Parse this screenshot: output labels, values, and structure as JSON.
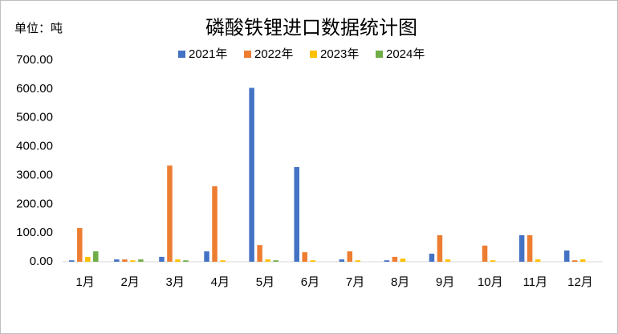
{
  "chart_data": {
    "type": "bar",
    "title": "磷酸铁锂进口数据统计图",
    "y_label": "单位：吨",
    "categories": [
      "1月",
      "2月",
      "3月",
      "4月",
      "5月",
      "6月",
      "7月",
      "8月",
      "9月",
      "10月",
      "11月",
      "12月"
    ],
    "series": [
      {
        "name": "2021年",
        "color": "#4472c4",
        "values": [
          5,
          8,
          17,
          36,
          604,
          329,
          8,
          5,
          28,
          0,
          92,
          39
        ]
      },
      {
        "name": "2022年",
        "color": "#ed7d31",
        "values": [
          117,
          8,
          334,
          262,
          58,
          33,
          36,
          17,
          92,
          56,
          92,
          5
        ]
      },
      {
        "name": "2023年",
        "color": "#ffc000",
        "values": [
          17,
          5,
          8,
          5,
          8,
          5,
          5,
          11,
          8,
          5,
          8,
          8
        ]
      },
      {
        "name": "2024年",
        "color": "#70ad47",
        "values": [
          36,
          8,
          5,
          null,
          5,
          null,
          null,
          null,
          null,
          null,
          null,
          null
        ]
      }
    ],
    "ylim": [
      0,
      700
    ],
    "yticks": [
      {
        "value": 0,
        "label": "0.00"
      },
      {
        "value": 100,
        "label": "100.00"
      },
      {
        "value": 200,
        "label": "200.00"
      },
      {
        "value": 300,
        "label": "300.00"
      },
      {
        "value": 400,
        "label": "400.00"
      },
      {
        "value": 500,
        "label": "500.00"
      },
      {
        "value": 600,
        "label": "600.00"
      },
      {
        "value": 700,
        "label": "700.00"
      }
    ],
    "grid": false,
    "legend": "top"
  }
}
